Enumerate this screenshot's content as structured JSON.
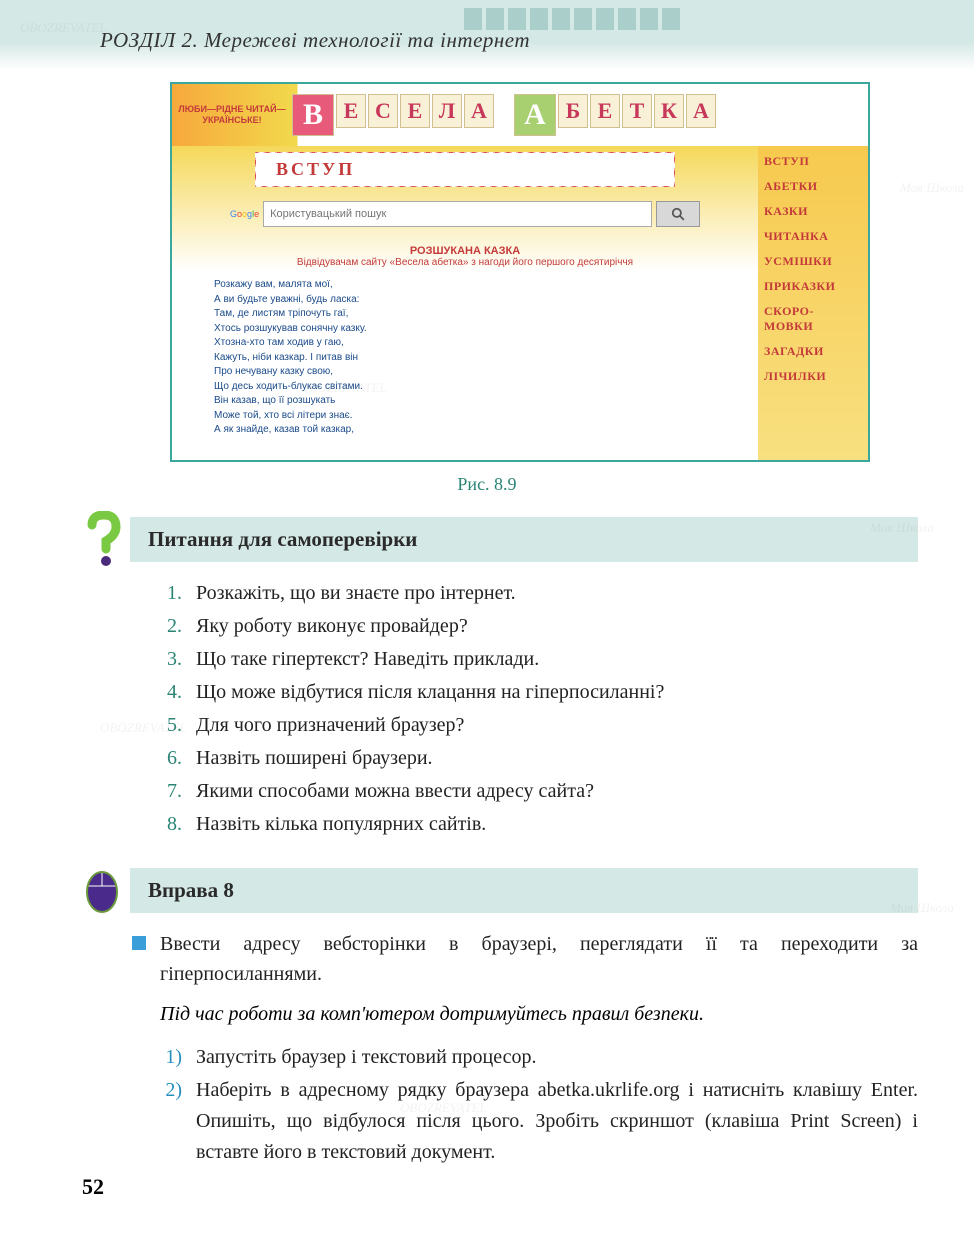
{
  "header": {
    "chapter": "РОЗДІЛ 2. Мережеві технології та інтернет"
  },
  "screenshot": {
    "slogan": "ЛЮБИ—РІДНЕ ЧИТАЙ— УКРАЇНСЬКЕ!",
    "logo_letters": [
      "В",
      "Е",
      "С",
      "Е",
      "Л",
      "А",
      " ",
      "А",
      "Б",
      "Е",
      "Т",
      "К",
      "А"
    ],
    "vstup": "ВСТУП",
    "search_placeholder": "Користувацький пошук",
    "story_title": "РОЗШУКАНА КАЗКА",
    "story_sub": "Відвідувачам сайту «Весела абетка» з нагоди його першого десятиріччя",
    "poem": [
      "Розкажу вам, малята мої,",
      "А ви будьте уважні, будь ласка:",
      "Там, де листям тріпочуть гаї,",
      "Хтось розшукував сонячну казку.",
      "Хтозна-хто там ходив у гаю,",
      "Кажуть, ніби казкар. І питав він",
      "Про нечувану казку свою,",
      "Що десь ходить-блукає світами.",
      "Він казав, що її розшукать",
      "Може той, хто всі літери знає.",
      "А як знайде, казав той казкар,"
    ],
    "nav": [
      "ВСТУП",
      "АБЕТКИ",
      "КАЗКИ",
      "ЧИТАНКА",
      "УСМІШКИ",
      "ПРИКАЗКИ",
      "СКОРО-МОВКИ",
      "ЗАГАДКИ",
      "ЛІЧИЛКИ"
    ]
  },
  "figure_caption": "Рис. 8.9",
  "questions": {
    "title": "Питання для самоперевірки",
    "items": [
      "Розкажіть, що ви знаєте про інтернет.",
      "Яку роботу виконує провайдер?",
      "Що таке гіпертекст? Наведіть приклади.",
      "Що може відбутися після клацання на гіперпосиланні?",
      "Для чого призначений браузер?",
      "Назвіть поширені браузери.",
      "Якими способами можна ввести адресу сайта?",
      "Назвіть кілька популярних сайтів."
    ]
  },
  "exercise": {
    "title": "Вправа 8",
    "lead": "Ввести адресу вебсторінки в браузері, переглядати її та переходити за гіперпосиланнями.",
    "note": "Під час роботи за комп'ютером дотримуйтесь правил безпеки.",
    "steps": [
      "Запустіть браузер і текстовий процесор.",
      "Наберіть в адресному рядку браузера abetka.ukrlife.org і натисніть клавішу Enter. Опишіть, що відбулося після цього. Зробіть скриншот (клавіша Print Screen) і вставте його в текстовий документ."
    ]
  },
  "page_number": "52",
  "colors": {
    "accent_teal": "#2a8575",
    "band_bg": "#d4e8e5",
    "frame_border": "#3aa89c",
    "list_blue": "#2a8fc0"
  }
}
